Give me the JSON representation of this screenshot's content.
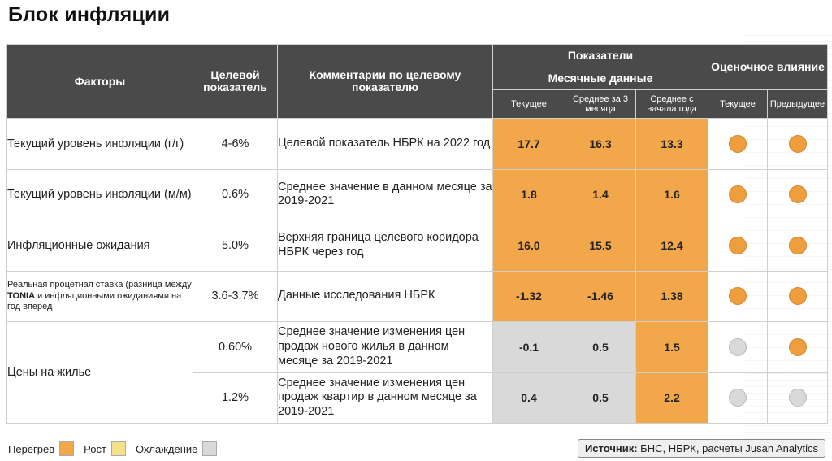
{
  "title": "Блок инфляции",
  "header": {
    "factors": "Факторы",
    "target": "Целевой показатель",
    "comments": "Комментарии по целевому показателю",
    "indicators": "Показатели",
    "monthly": "Месячные данные",
    "current": "Текущее",
    "avg3": "Среднее за 3 месяца",
    "ytd": "Среднее с начала года",
    "impact": "Оценочное влияние",
    "impact_current": "Текущее",
    "impact_prev": "Предыдущее"
  },
  "rows": [
    {
      "factor": "Текущий уровень инфляции (г/г)",
      "target": "4-6%",
      "comment": "Целевой показатель НБРК на 2022 год",
      "current": "17.7",
      "avg3": "16.3",
      "ytd": "13.3",
      "colors": [
        "orange",
        "orange",
        "orange"
      ],
      "impact_current": "orange",
      "impact_prev": "orange"
    },
    {
      "factor": "Текущий уровень инфляции (м/м)",
      "target": "0.6%",
      "comment": "Среднее значение в данном месяце за 2019-2021",
      "current": "1.8",
      "avg3": "1.4",
      "ytd": "1.6",
      "colors": [
        "orange",
        "orange",
        "orange"
      ],
      "impact_current": "orange",
      "impact_prev": "orange"
    },
    {
      "factor": "Инфляционные ожидания",
      "target": "5.0%",
      "comment": "Верхняя граница целевого коридора НБРК через год",
      "current": "16.0",
      "avg3": "15.5",
      "ytd": "12.4",
      "colors": [
        "orange",
        "orange",
        "orange"
      ],
      "impact_current": "orange",
      "impact_prev": "orange"
    },
    {
      "factor_pre": "Реальная процетная ставка (разница между ",
      "factor_bold": "TONIA",
      "factor_post": " и инфляционными ожиданиями на год вперед",
      "target": "3.6-3.7%",
      "comment": "Данные исследования НБРК",
      "current": "-1.32",
      "avg3": "-1.46",
      "ytd": "1.38",
      "colors": [
        "orange",
        "orange",
        "orange"
      ],
      "impact_current": "orange",
      "impact_prev": "orange"
    },
    {
      "factor": "Цены на жилье",
      "target": "0.60%",
      "comment": "Среднее значение изменения цен продаж нового жилья в данном месяце за 2019-2021",
      "current": "-0.1",
      "avg3": "0.5",
      "ytd": "1.5",
      "colors": [
        "grey",
        "grey",
        "orange"
      ],
      "impact_current": "grey",
      "impact_prev": "orange"
    },
    {
      "target": "1.2%",
      "comment": "Среднее значение изменения цен продаж квартир в данном месяце за 2019-2021",
      "current": "0.4",
      "avg3": "0.5",
      "ytd": "2.2",
      "colors": [
        "grey",
        "grey",
        "orange"
      ],
      "impact_current": "grey",
      "impact_prev": "grey"
    }
  ],
  "legend": {
    "overheat": "Перегрев",
    "growth": "Рост",
    "cooling": "Охлаждение",
    "colors": {
      "orange": "#f2a84a",
      "yellow": "#f7e08a",
      "grey": "#d9d9d9"
    }
  },
  "source": {
    "label": "Источник:",
    "text": " БНС, НБРК, расчеты Jusan Analytics"
  }
}
